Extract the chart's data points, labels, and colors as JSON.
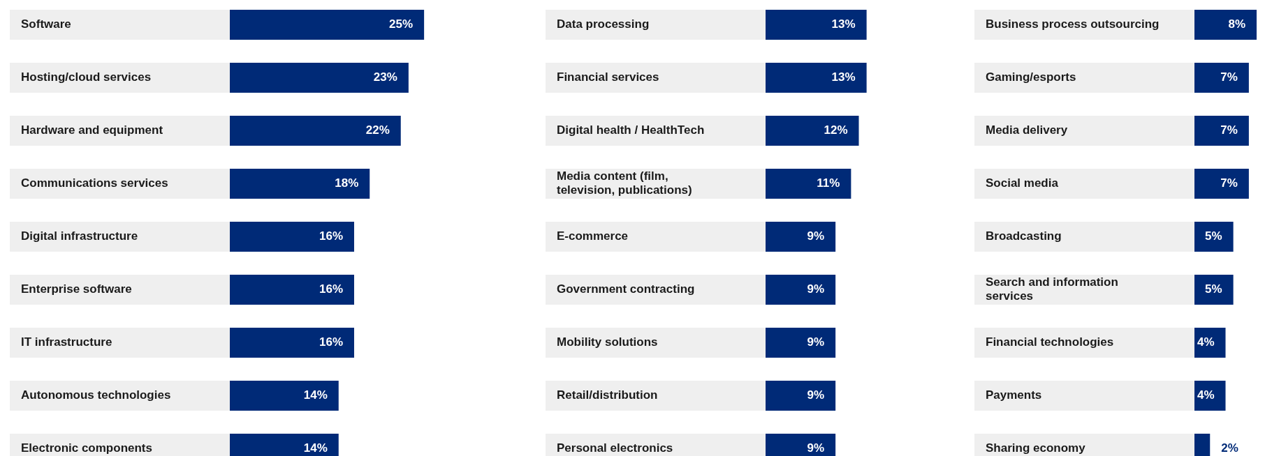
{
  "chart_data": [
    {
      "type": "bar",
      "orientation": "horizontal",
      "color": "#002a77",
      "categories": [
        "Software",
        "Hosting/cloud services",
        "Hardware and equipment",
        "Communications services",
        "Digital infrastructure",
        "Enterprise software",
        "IT infrastructure",
        "Autonomous technologies",
        "Electronic components"
      ],
      "values": [
        25,
        23,
        22,
        18,
        16,
        16,
        16,
        14,
        14
      ],
      "value_labels": [
        "25%",
        "23%",
        "22%",
        "18%",
        "16%",
        "16%",
        "16%",
        "14%",
        "14%"
      ]
    },
    {
      "type": "bar",
      "orientation": "horizontal",
      "color": "#002a77",
      "categories": [
        "Data processing",
        "Financial services",
        "Digital health / HealthTech",
        "Media content (film, television, publications)",
        "E-commerce",
        "Government contracting",
        "Mobility solutions",
        "Retail/distribution",
        "Personal electronics"
      ],
      "values": [
        13,
        13,
        12,
        11,
        9,
        9,
        9,
        9,
        9
      ],
      "value_labels": [
        "13%",
        "13%",
        "12%",
        "11%",
        "9%",
        "9%",
        "9%",
        "9%",
        "9%"
      ]
    },
    {
      "type": "bar",
      "orientation": "horizontal",
      "color": "#002a77",
      "categories": [
        "Business process outsourcing",
        "Gaming/esports",
        "Media delivery",
        "Social media",
        "Broadcasting",
        "Search and information services",
        "Financial technologies",
        "Payments",
        "Sharing economy"
      ],
      "values": [
        8,
        7,
        7,
        7,
        5,
        5,
        4,
        4,
        2
      ],
      "value_labels": [
        "8%",
        "7%",
        "7%",
        "7%",
        "5%",
        "5%",
        "4%",
        "4%",
        "2%"
      ]
    }
  ]
}
